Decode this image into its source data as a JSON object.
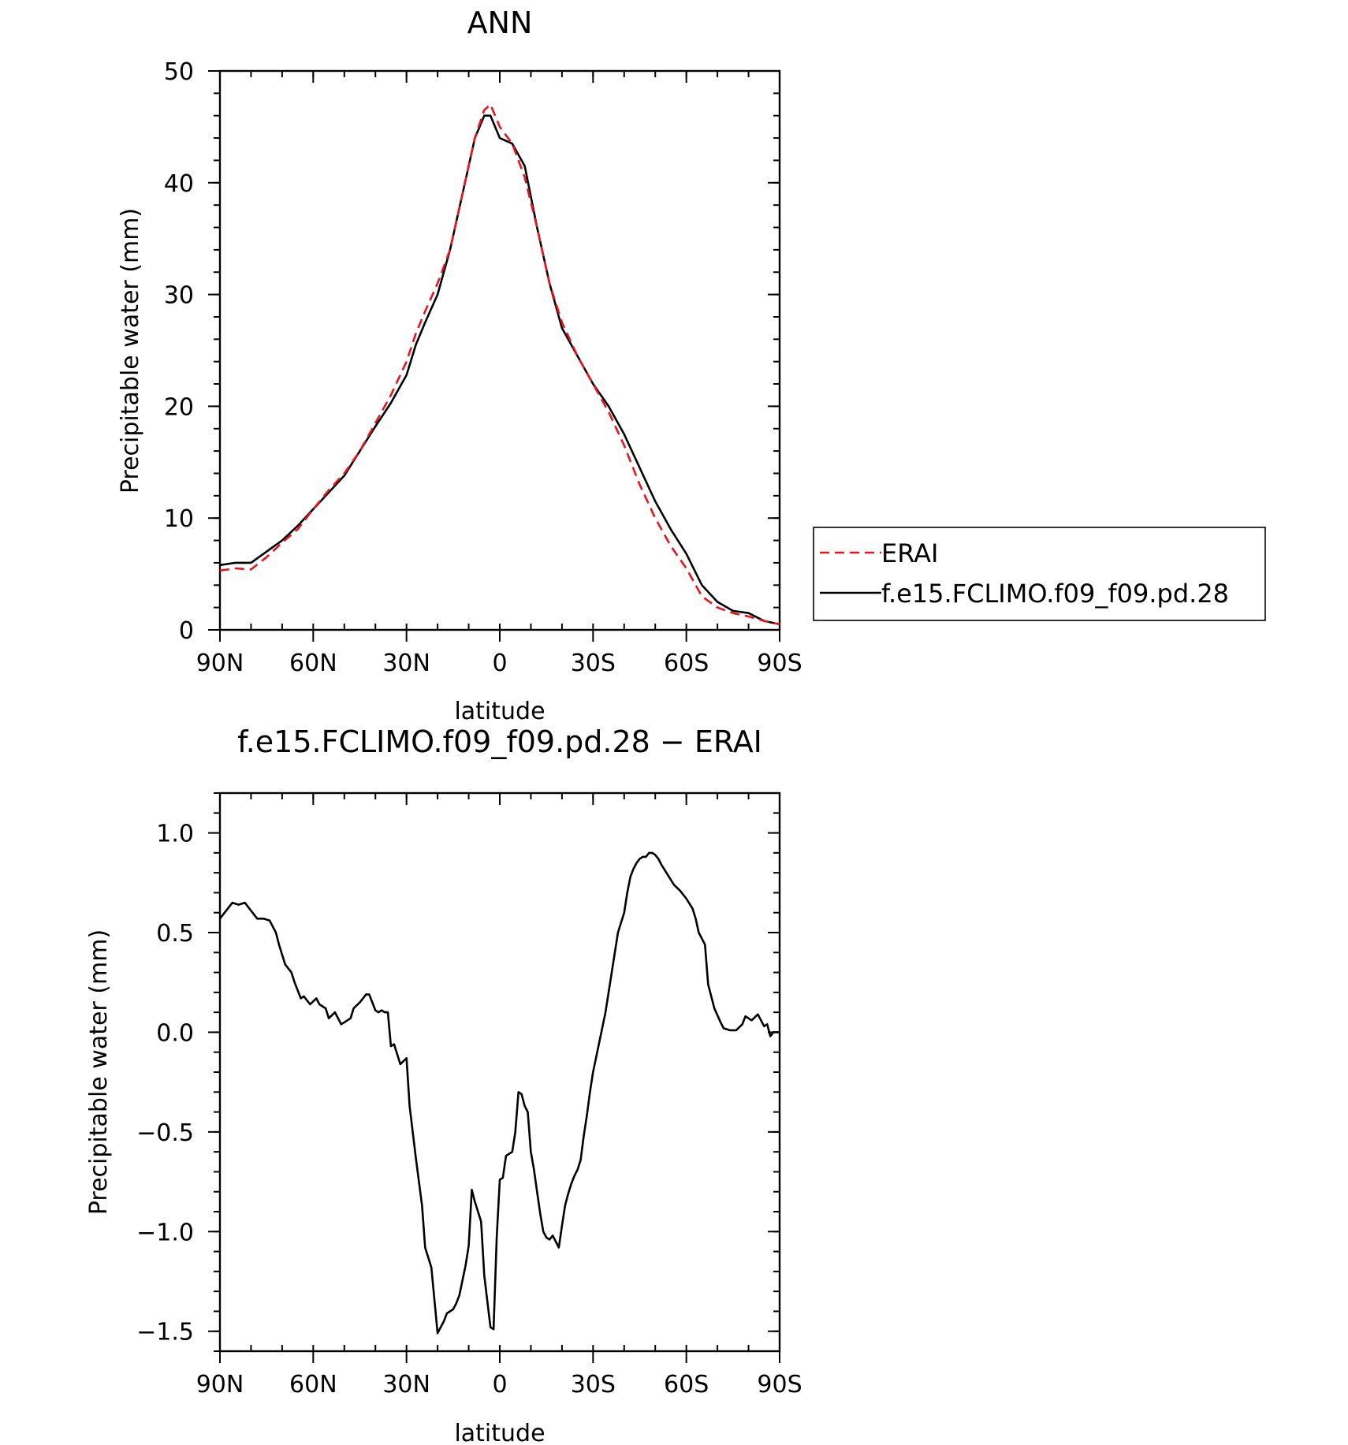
{
  "chart_data": [
    {
      "type": "line",
      "title": "ANN",
      "xlabel": "latitude",
      "ylabel": "Precipitable water (mm)",
      "xlim": [
        90,
        -90
      ],
      "ylim": [
        0,
        50
      ],
      "x_tick_values": [
        90,
        60,
        30,
        0,
        -30,
        -60,
        -90
      ],
      "x_tick_labels": [
        "90N",
        "60N",
        "30N",
        "0",
        "30S",
        "60S",
        "90S"
      ],
      "y_tick_values": [
        0,
        10,
        20,
        30,
        40,
        50
      ],
      "y_tick_labels": [
        "0",
        "10",
        "20",
        "30",
        "40",
        "50"
      ],
      "grid": false,
      "legend_position": "right",
      "series": [
        {
          "name": "ERAI",
          "color": "#e8141c",
          "dash": "dashed",
          "x": [
            90,
            85,
            80,
            75,
            70,
            65,
            60,
            55,
            50,
            45,
            40,
            35,
            30,
            27,
            24,
            20,
            16,
            12,
            8,
            5,
            3,
            0,
            -4,
            -8,
            -12,
            -16,
            -20,
            -25,
            -30,
            -35,
            -40,
            -45,
            -50,
            -55,
            -60,
            -65,
            -70,
            -75,
            -80,
            -85,
            -90
          ],
          "y": [
            5.3,
            5.5,
            5.4,
            6.5,
            7.8,
            9.0,
            10.8,
            12.5,
            14.0,
            16.0,
            18.5,
            21.0,
            24.0,
            26.5,
            28.5,
            31.0,
            34.0,
            39.0,
            44.0,
            46.5,
            47.0,
            45.0,
            43.5,
            40.5,
            36.0,
            31.0,
            27.5,
            24.5,
            22.0,
            19.5,
            16.5,
            13.0,
            10.0,
            7.5,
            5.5,
            3.0,
            2.0,
            1.5,
            1.2,
            0.8,
            0.5
          ]
        },
        {
          "name": "f.e15.FCLIMO.f09_f09.pd.28",
          "color": "#000000",
          "dash": "solid",
          "x": [
            90,
            85,
            80,
            75,
            70,
            65,
            60,
            55,
            50,
            45,
            40,
            35,
            30,
            27,
            24,
            20,
            16,
            12,
            8,
            5,
            3,
            0,
            -4,
            -8,
            -12,
            -16,
            -20,
            -25,
            -30,
            -35,
            -40,
            -45,
            -50,
            -55,
            -60,
            -65,
            -70,
            -75,
            -80,
            -85,
            -90
          ],
          "y": [
            5.8,
            6.0,
            6.0,
            7.0,
            8.0,
            9.3,
            10.8,
            12.3,
            13.8,
            16.0,
            18.2,
            20.3,
            22.8,
            25.5,
            27.5,
            30.0,
            34.0,
            39.0,
            44.0,
            46.0,
            46.0,
            44.0,
            43.5,
            41.5,
            36.0,
            31.0,
            27.0,
            24.5,
            22.0,
            20.0,
            17.5,
            14.5,
            11.5,
            9.0,
            6.8,
            4.0,
            2.5,
            1.7,
            1.5,
            0.8,
            0.5
          ]
        }
      ]
    },
    {
      "type": "line",
      "title": "f.e15.FCLIMO.f09_f09.pd.28 − ERAI",
      "xlabel": "latitude",
      "ylabel": "Precipitable water (mm)",
      "xlim": [
        90,
        -90
      ],
      "ylim": [
        -1.6,
        1.2
      ],
      "x_tick_values": [
        90,
        60,
        30,
        0,
        -30,
        -60,
        -90
      ],
      "x_tick_labels": [
        "90N",
        "60N",
        "30N",
        "0",
        "30S",
        "60S",
        "90S"
      ],
      "y_tick_values": [
        1.0,
        0.5,
        0.0,
        -0.5,
        -1.0,
        -1.5
      ],
      "y_tick_labels": [
        "1.0",
        "0.5",
        "0.0",
        "−0.5",
        "−1.0",
        "−1.5"
      ],
      "grid": false,
      "series": [
        {
          "color": "#000000",
          "dash": "solid",
          "x": [
            90,
            88,
            86,
            84,
            82,
            80,
            78,
            76,
            74,
            72,
            71,
            69,
            67,
            66,
            64,
            63,
            61,
            59,
            58,
            56,
            55,
            53,
            51,
            50,
            48,
            47,
            45,
            43,
            42,
            40,
            39,
            38,
            37,
            36,
            35,
            34,
            32,
            30,
            29,
            27,
            25,
            24,
            22,
            20,
            18,
            17,
            15,
            14,
            13,
            11,
            10,
            9,
            8,
            6,
            5,
            3,
            2,
            1,
            0,
            -1,
            -2,
            -4,
            -5,
            -6,
            -7,
            -8,
            -9,
            -10,
            -11,
            -12,
            -13,
            -14,
            -15,
            -16,
            -17,
            -18,
            -19,
            -20,
            -21,
            -22,
            -23,
            -24,
            -25,
            -26,
            -27,
            -28,
            -29,
            -30,
            -32,
            -34,
            -36,
            -38,
            -40,
            -41,
            -42,
            -43,
            -44,
            -45,
            -46,
            -47,
            -48,
            -49,
            -50,
            -51,
            -52,
            -54,
            -56,
            -58,
            -60,
            -62,
            -63,
            -64,
            -66,
            -67,
            -69,
            -71,
            -72,
            -74,
            -76,
            -78,
            -79,
            -81,
            -83,
            -85,
            -86,
            -87,
            -88,
            -90
          ],
          "y": [
            0.57,
            0.61,
            0.65,
            0.64,
            0.65,
            0.61,
            0.57,
            0.57,
            0.56,
            0.5,
            0.44,
            0.34,
            0.3,
            0.25,
            0.17,
            0.18,
            0.14,
            0.17,
            0.14,
            0.12,
            0.07,
            0.1,
            0.04,
            0.05,
            0.07,
            0.12,
            0.15,
            0.19,
            0.19,
            0.11,
            0.1,
            0.11,
            0.1,
            0.1,
            -0.07,
            -0.06,
            -0.16,
            -0.13,
            -0.37,
            -0.63,
            -0.87,
            -1.08,
            -1.18,
            -1.51,
            -1.45,
            -1.41,
            -1.39,
            -1.36,
            -1.32,
            -1.17,
            -1.07,
            -0.79,
            -0.85,
            -0.95,
            -1.22,
            -1.48,
            -1.49,
            -1.03,
            -0.74,
            -0.73,
            -0.62,
            -0.6,
            -0.5,
            -0.3,
            -0.31,
            -0.37,
            -0.4,
            -0.6,
            -0.69,
            -0.8,
            -0.91,
            -1.0,
            -1.03,
            -1.04,
            -1.02,
            -1.05,
            -1.08,
            -0.97,
            -0.87,
            -0.81,
            -0.76,
            -0.72,
            -0.69,
            -0.64,
            -0.52,
            -0.42,
            -0.3,
            -0.2,
            -0.05,
            0.1,
            0.3,
            0.5,
            0.6,
            0.7,
            0.78,
            0.82,
            0.85,
            0.87,
            0.88,
            0.88,
            0.9,
            0.9,
            0.89,
            0.87,
            0.84,
            0.79,
            0.74,
            0.71,
            0.67,
            0.62,
            0.57,
            0.5,
            0.44,
            0.24,
            0.12,
            0.05,
            0.02,
            0.01,
            0.01,
            0.04,
            0.08,
            0.06,
            0.09,
            0.03,
            0.04,
            -0.02,
            0.0,
            0.0
          ]
        }
      ]
    }
  ]
}
